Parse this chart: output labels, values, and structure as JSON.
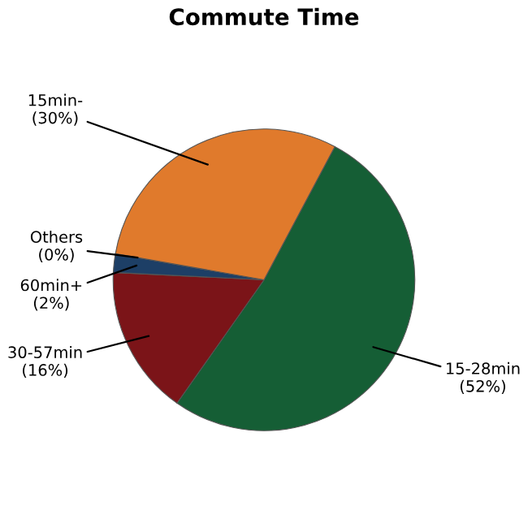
{
  "chart_data": {
    "type": "pie",
    "title": "Commute Time",
    "categories": [
      "15-28min",
      "30-57min",
      "60min+",
      "Others",
      "15min-"
    ],
    "values": [
      52,
      16,
      2,
      0,
      30
    ],
    "value_labels": [
      "(52%)",
      "(16%)",
      "(2%)",
      "(0%)",
      "(30%)"
    ],
    "colors": [
      "#155e35",
      "#7b1418",
      "#1d3f66",
      "#6a8fb5",
      "#e07a2c"
    ]
  }
}
